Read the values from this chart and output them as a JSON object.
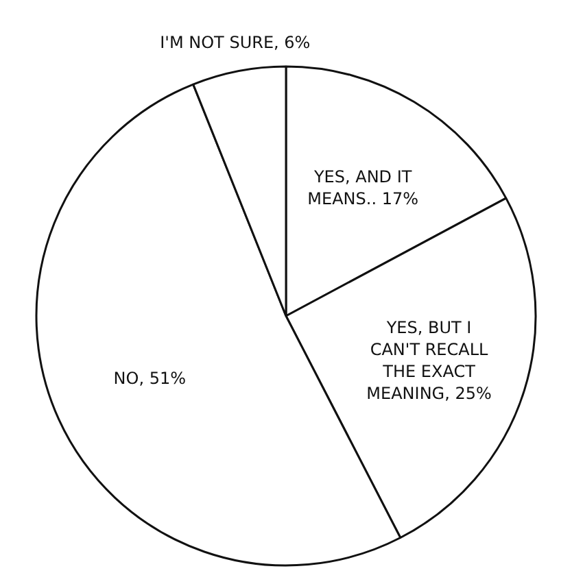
{
  "chart_data": {
    "type": "pie",
    "categories": [
      "YES, AND IT MEANS..",
      "YES, BUT I CAN'T RECALL THE EXACT MEANING",
      "NO",
      "I'M NOT SURE"
    ],
    "values": [
      17,
      25,
      51,
      6
    ],
    "value_labels": [
      "17%",
      "25%",
      "51%",
      "6%"
    ],
    "colors": [
      "#ffffff",
      "#ffffff",
      "#ffffff",
      "#ffffff"
    ]
  }
}
